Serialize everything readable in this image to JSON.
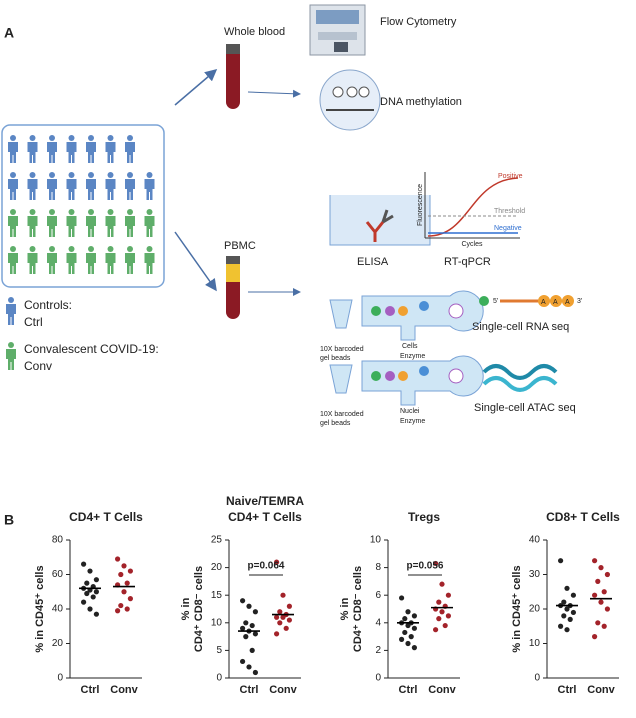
{
  "panel_a": {
    "label": "A",
    "whole_blood": "Whole blood",
    "flow": "Flow Cytometry",
    "dna": "DNA methylation",
    "pbmc": "PBMC",
    "elisa": "ELISA",
    "rtqpcr": "RT-qPCR",
    "positive": "Positive",
    "threshold": "Threshold",
    "negative": "Negative",
    "fluorescence": "Fluorescence",
    "cycles": "Cycles",
    "controls": "Controls:",
    "ctrl": "Ctrl",
    "conv_title": "Convalescent COVID-19:",
    "conv": "Conv",
    "beads_rna": [
      "10X barcoded",
      "gel beads"
    ],
    "cells_enzyme": [
      "Cells",
      "Enzyme"
    ],
    "five": "5'",
    "three": "3'",
    "polya": [
      "A",
      "A",
      "A"
    ],
    "scrna": "Single-cell RNA seq",
    "beads_atac": [
      "10X barcoded",
      "gel beads"
    ],
    "nuclei_enzyme": [
      "Nuclei",
      "Enzyme"
    ],
    "scatac": "Single-cell ATAC seq"
  },
  "panel_b_label": "B",
  "chart_data": [
    {
      "type": "strip",
      "title": [
        "CD4+ T Cells"
      ],
      "ylabel": [
        "% in CD45⁺ cells"
      ],
      "categories": [
        "Ctrl",
        "Conv"
      ],
      "groups": [
        {
          "color": "#222222",
          "values": [
            66,
            62,
            57,
            55,
            53,
            52,
            51,
            50,
            49,
            47,
            44,
            40,
            37
          ],
          "mean": 52
        },
        {
          "color": "#a3232a",
          "values": [
            69,
            65,
            62,
            60,
            55,
            54,
            50,
            46,
            42,
            40,
            39
          ],
          "mean": 53
        }
      ],
      "ylim": [
        0,
        80
      ],
      "yticks": [
        0,
        20,
        40,
        60,
        80
      ]
    },
    {
      "type": "strip",
      "title": [
        "Naive/TEMRA",
        "CD4+ T Cells"
      ],
      "ylabel": [
        "% in",
        "CD4⁺ CD8⁻ cells"
      ],
      "categories": [
        "Ctrl",
        "Conv"
      ],
      "groups": [
        {
          "color": "#222222",
          "values": [
            14,
            13,
            12,
            10,
            9.5,
            9,
            8.5,
            8,
            7.5,
            5,
            3,
            2,
            1
          ],
          "mean": 8.5
        },
        {
          "color": "#a3232a",
          "values": [
            21,
            15,
            13,
            12,
            11.5,
            11,
            11,
            10.5,
            10,
            9,
            8
          ],
          "mean": 11.5
        }
      ],
      "ylim": [
        0,
        25
      ],
      "yticks": [
        0,
        5,
        10,
        15,
        20,
        25
      ],
      "annotation": "p=0.064"
    },
    {
      "type": "strip",
      "title": [
        "Tregs"
      ],
      "ylabel": [
        "% in",
        "CD4⁺ CD8⁻ cells"
      ],
      "categories": [
        "Ctrl",
        "Conv"
      ],
      "groups": [
        {
          "color": "#222222",
          "values": [
            5.8,
            4.8,
            4.5,
            4.3,
            4.0,
            4.0,
            3.8,
            3.6,
            3.3,
            3.0,
            2.8,
            2.5,
            2.2
          ],
          "mean": 4.0
        },
        {
          "color": "#a3232a",
          "values": [
            8.3,
            6.8,
            6.0,
            5.5,
            5.2,
            5.0,
            4.8,
            4.5,
            4.3,
            3.8,
            3.5
          ],
          "mean": 5.1
        }
      ],
      "ylim": [
        0,
        10
      ],
      "yticks": [
        0,
        2,
        4,
        6,
        8,
        10
      ],
      "annotation": "p=0.056"
    },
    {
      "type": "strip",
      "title": [
        "CD8+ T Cells"
      ],
      "ylabel": [
        "% in CD45⁺ cells"
      ],
      "categories": [
        "Ctrl",
        "Conv"
      ],
      "groups": [
        {
          "color": "#222222",
          "values": [
            34,
            26,
            24,
            22,
            21,
            21,
            20,
            19,
            18,
            17,
            15,
            14
          ],
          "mean": 21
        },
        {
          "color": "#a3232a",
          "values": [
            34,
            32,
            30,
            28,
            25,
            24,
            22,
            20,
            16,
            15,
            12
          ],
          "mean": 23
        }
      ],
      "ylim": [
        0,
        40
      ],
      "yticks": [
        0,
        10,
        20,
        30,
        40
      ]
    }
  ]
}
